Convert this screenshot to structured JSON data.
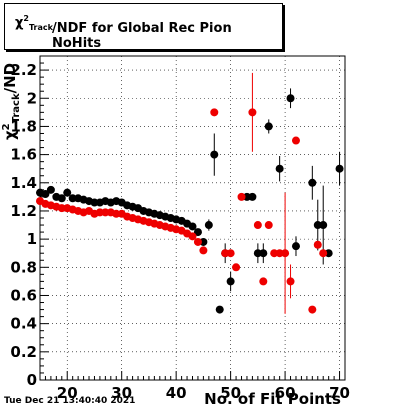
{
  "title": {
    "prefix_symbol": "χ",
    "prefix_sup": "2",
    "prefix_sub": "Track",
    "text": "/NDF for Global Rec Pion NoHits"
  },
  "timestamp": "Tue Dec 21 13:40:40 2021",
  "chart_data": {
    "type": "scatter",
    "title": "χ²Track/NDF for Global Rec Pion NoHits",
    "xlabel": "No. of Fit Points",
    "ylabel_symbol": "χ",
    "ylabel_sup": "2",
    "ylabel_sub": "Track",
    "ylabel_suffix": "/ND",
    "xlim": [
      15,
      71
    ],
    "ylim": [
      0,
      2.3
    ],
    "x_ticks": [
      20,
      30,
      40,
      50,
      60,
      70
    ],
    "y_ticks": [
      0,
      0.2,
      0.4,
      0.6,
      0.8,
      1,
      1.2,
      1.4,
      1.6,
      1.8,
      2,
      2.2
    ],
    "y_tick_labels": [
      "0",
      "0.2",
      "0.4",
      "0.6",
      "0.8",
      "1",
      "1.2",
      "1.4",
      "1.6",
      "1.8",
      "2",
      "2.2"
    ],
    "grid": true,
    "series": [
      {
        "color": "#000000",
        "points": [
          {
            "x": 15,
            "y": 1.33
          },
          {
            "x": 16,
            "y": 1.32
          },
          {
            "x": 17,
            "y": 1.35
          },
          {
            "x": 18,
            "y": 1.3
          },
          {
            "x": 19,
            "y": 1.29
          },
          {
            "x": 20,
            "y": 1.33
          },
          {
            "x": 21,
            "y": 1.29
          },
          {
            "x": 22,
            "y": 1.29
          },
          {
            "x": 23,
            "y": 1.28
          },
          {
            "x": 24,
            "y": 1.27
          },
          {
            "x": 25,
            "y": 1.26
          },
          {
            "x": 26,
            "y": 1.26
          },
          {
            "x": 27,
            "y": 1.27
          },
          {
            "x": 28,
            "y": 1.26
          },
          {
            "x": 29,
            "y": 1.27
          },
          {
            "x": 30,
            "y": 1.26
          },
          {
            "x": 31,
            "y": 1.24
          },
          {
            "x": 32,
            "y": 1.23
          },
          {
            "x": 33,
            "y": 1.22
          },
          {
            "x": 34,
            "y": 1.2
          },
          {
            "x": 35,
            "y": 1.19
          },
          {
            "x": 36,
            "y": 1.18
          },
          {
            "x": 37,
            "y": 1.17
          },
          {
            "x": 38,
            "y": 1.16
          },
          {
            "x": 39,
            "y": 1.15
          },
          {
            "x": 40,
            "y": 1.14
          },
          {
            "x": 41,
            "y": 1.13
          },
          {
            "x": 42,
            "y": 1.11
          },
          {
            "x": 43,
            "y": 1.09
          },
          {
            "x": 44,
            "y": 1.05
          },
          {
            "x": 45,
            "y": 0.98
          },
          {
            "x": 46,
            "y": 1.1,
            "err": 0.04
          },
          {
            "x": 47,
            "y": 1.6,
            "err": 0.15
          },
          {
            "x": 48,
            "y": 0.5
          },
          {
            "x": 49,
            "y": 0.9,
            "err": 0.07
          },
          {
            "x": 50,
            "y": 0.7,
            "err": 0.07
          },
          {
            "x": 53,
            "y": 1.3
          },
          {
            "x": 54,
            "y": 1.3
          },
          {
            "x": 55,
            "y": 0.9,
            "err": 0.07
          },
          {
            "x": 56,
            "y": 0.9,
            "err": 0.07
          },
          {
            "x": 57,
            "y": 1.8,
            "err": 0.05
          },
          {
            "x": 59,
            "y": 1.5,
            "err": 0.09
          },
          {
            "x": 61,
            "y": 2.0,
            "err": 0.07
          },
          {
            "x": 62,
            "y": 0.95,
            "err": 0.07
          },
          {
            "x": 65,
            "y": 1.4,
            "err": 0.12
          },
          {
            "x": 66,
            "y": 1.1,
            "err": 0.18
          },
          {
            "x": 67,
            "y": 1.1,
            "err": 0.28
          },
          {
            "x": 68,
            "y": 0.9
          },
          {
            "x": 70,
            "y": 1.5,
            "err": 0.12
          }
        ]
      },
      {
        "color": "#ee0000",
        "points": [
          {
            "x": 15,
            "y": 1.27
          },
          {
            "x": 16,
            "y": 1.25
          },
          {
            "x": 17,
            "y": 1.24
          },
          {
            "x": 18,
            "y": 1.23
          },
          {
            "x": 19,
            "y": 1.22
          },
          {
            "x": 20,
            "y": 1.22
          },
          {
            "x": 21,
            "y": 1.21
          },
          {
            "x": 22,
            "y": 1.2
          },
          {
            "x": 23,
            "y": 1.19
          },
          {
            "x": 24,
            "y": 1.2
          },
          {
            "x": 25,
            "y": 1.18
          },
          {
            "x": 26,
            "y": 1.19
          },
          {
            "x": 27,
            "y": 1.19
          },
          {
            "x": 28,
            "y": 1.19
          },
          {
            "x": 29,
            "y": 1.18
          },
          {
            "x": 30,
            "y": 1.18
          },
          {
            "x": 31,
            "y": 1.16
          },
          {
            "x": 32,
            "y": 1.15
          },
          {
            "x": 33,
            "y": 1.14
          },
          {
            "x": 34,
            "y": 1.13
          },
          {
            "x": 35,
            "y": 1.12
          },
          {
            "x": 36,
            "y": 1.11
          },
          {
            "x": 37,
            "y": 1.1
          },
          {
            "x": 38,
            "y": 1.09
          },
          {
            "x": 39,
            "y": 1.08
          },
          {
            "x": 40,
            "y": 1.07
          },
          {
            "x": 41,
            "y": 1.06
          },
          {
            "x": 42,
            "y": 1.04
          },
          {
            "x": 43,
            "y": 1.02
          },
          {
            "x": 44,
            "y": 0.98
          },
          {
            "x": 45,
            "y": 0.92
          },
          {
            "x": 47,
            "y": 1.9
          },
          {
            "x": 49,
            "y": 0.9
          },
          {
            "x": 50,
            "y": 0.9
          },
          {
            "x": 51,
            "y": 0.8
          },
          {
            "x": 52,
            "y": 1.3
          },
          {
            "x": 54,
            "y": 1.9,
            "err": 0.28
          },
          {
            "x": 55,
            "y": 1.1
          },
          {
            "x": 56,
            "y": 0.7
          },
          {
            "x": 57,
            "y": 1.1
          },
          {
            "x": 58,
            "y": 0.9
          },
          {
            "x": 59,
            "y": 0.9
          },
          {
            "x": 60,
            "y": 0.9,
            "err": 0.43
          },
          {
            "x": 61,
            "y": 0.7,
            "err": 0.12
          },
          {
            "x": 62,
            "y": 1.7
          },
          {
            "x": 65,
            "y": 0.5
          },
          {
            "x": 66,
            "y": 0.96
          },
          {
            "x": 67,
            "y": 0.9
          }
        ]
      }
    ]
  }
}
